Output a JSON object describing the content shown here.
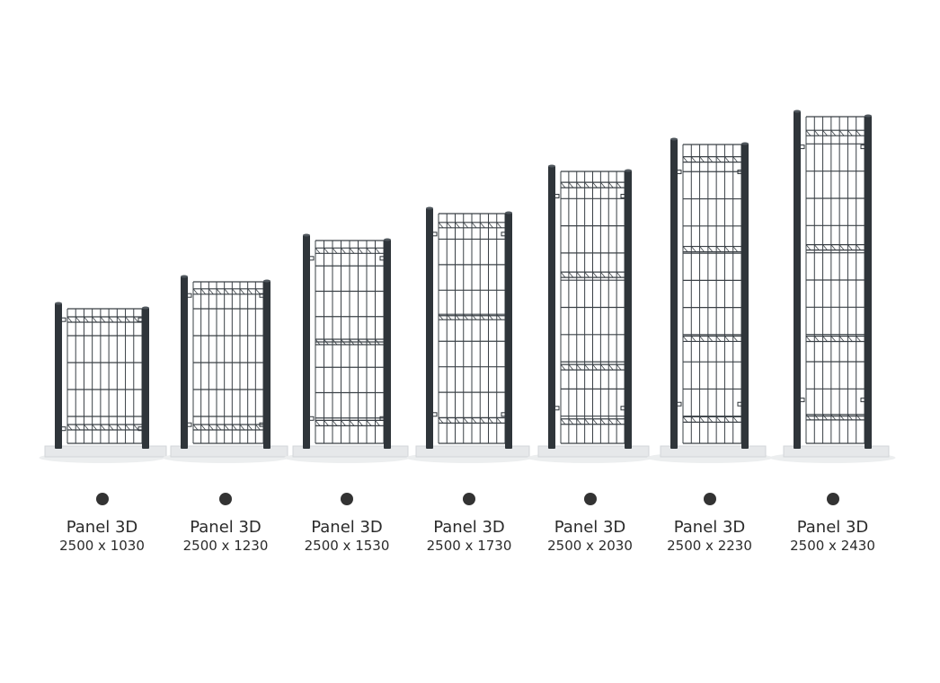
{
  "colors": {
    "post": "#2f353a",
    "mesh": "#3a4046",
    "base": "#e6e8ea",
    "dot": "#333333",
    "text": "#2b2b2b"
  },
  "panels": [
    {
      "name": "Panel 3D",
      "dimensions": "2500 x 1030"
    },
    {
      "name": "Panel 3D",
      "dimensions": "2500 x 1230"
    },
    {
      "name": "Panel 3D",
      "dimensions": "2500 x 1530"
    },
    {
      "name": "Panel 3D",
      "dimensions": "2500 x 1730"
    },
    {
      "name": "Panel 3D",
      "dimensions": "2500 x 2030"
    },
    {
      "name": "Panel 3D",
      "dimensions": "2500 x 2230"
    },
    {
      "name": "Panel 3D",
      "dimensions": "2500 x 2430"
    }
  ]
}
